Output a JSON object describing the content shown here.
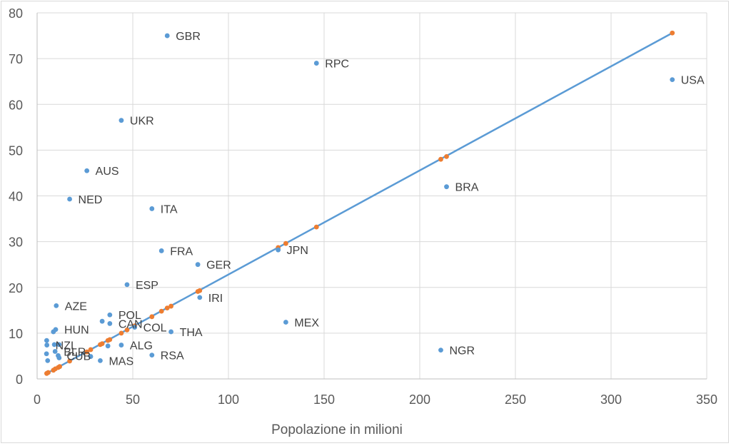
{
  "chart_data": {
    "type": "scatter",
    "xlabel": "Popolazione in milioni",
    "ylabel": "",
    "title": "",
    "xlim": [
      0,
      350
    ],
    "ylim": [
      0,
      80
    ],
    "xticks": [
      0,
      50,
      100,
      150,
      200,
      250,
      300,
      350
    ],
    "yticks": [
      0,
      10,
      20,
      30,
      40,
      50,
      60,
      70,
      80
    ],
    "grid": true,
    "colors": {
      "actual": "#5b9bd5",
      "fitted": "#ed7d31",
      "line": "#5b9bd5"
    },
    "series": [
      {
        "points": [
          {
            "x": 68,
            "y": 75,
            "label": "GBR"
          },
          {
            "x": 146,
            "y": 69,
            "label": "RPC"
          },
          {
            "x": 332,
            "y": 65.4,
            "label": "USA"
          },
          {
            "x": 44,
            "y": 56.5,
            "label": "UKR"
          },
          {
            "x": 26,
            "y": 45.5,
            "label": "AUS"
          },
          {
            "x": 214,
            "y": 42,
            "label": "BRA"
          },
          {
            "x": 17,
            "y": 39.3,
            "label": "NED"
          },
          {
            "x": 60,
            "y": 37.2,
            "label": "ITA"
          },
          {
            "x": 65,
            "y": 28,
            "label": "FRA"
          },
          {
            "x": 126,
            "y": 28.2,
            "label": "JPN"
          },
          {
            "x": 84,
            "y": 25,
            "label": "GER"
          },
          {
            "x": 47,
            "y": 20.6,
            "label": "ESP"
          },
          {
            "x": 85,
            "y": 17.8,
            "label": "IRI"
          },
          {
            "x": 10,
            "y": 16,
            "label": "AZE"
          },
          {
            "x": 38,
            "y": 14,
            "label": "POL"
          },
          {
            "x": 34,
            "y": 12.6,
            "label": ""
          },
          {
            "x": 38,
            "y": 12.1,
            "label": "CAN"
          },
          {
            "x": 130,
            "y": 12.4,
            "label": "MEX"
          },
          {
            "x": 51,
            "y": 11.3,
            "label": "COL"
          },
          {
            "x": 70,
            "y": 10.3,
            "label": "THA"
          },
          {
            "x": 9.7,
            "y": 10.8,
            "label": "HUN"
          },
          {
            "x": 8.5,
            "y": 10.3,
            "label": ""
          },
          {
            "x": 5,
            "y": 8.4,
            "label": ""
          },
          {
            "x": 5.1,
            "y": 7.4,
            "label": "NZL"
          },
          {
            "x": 9,
            "y": 7.5,
            "label": ""
          },
          {
            "x": 11.5,
            "y": 7.5,
            "label": ""
          },
          {
            "x": 44,
            "y": 7.4,
            "label": "ALG"
          },
          {
            "x": 37,
            "y": 7.2,
            "label": ""
          },
          {
            "x": 9.4,
            "y": 6,
            "label": "BLR"
          },
          {
            "x": 4.9,
            "y": 5.5,
            "label": ""
          },
          {
            "x": 11,
            "y": 5.1,
            "label": "CUB"
          },
          {
            "x": 60,
            "y": 5.2,
            "label": "RSA"
          },
          {
            "x": 211,
            "y": 6.3,
            "label": "NGR"
          },
          {
            "x": 28,
            "y": 4.9,
            "label": ""
          },
          {
            "x": 33,
            "y": 4,
            "label": "MAS"
          },
          {
            "x": 5.5,
            "y": 4,
            "label": ""
          },
          {
            "x": 11.5,
            "y": 4.6,
            "label": ""
          }
        ]
      },
      {
        "points": [
          {
            "x": 5,
            "y": 1.2
          },
          {
            "x": 5.8,
            "y": 1.4
          },
          {
            "x": 8.5,
            "y": 1.9
          },
          {
            "x": 9.5,
            "y": 2.2
          },
          {
            "x": 11,
            "y": 2.5
          },
          {
            "x": 11.8,
            "y": 2.7
          },
          {
            "x": 17,
            "y": 3.9
          },
          {
            "x": 26,
            "y": 5.9
          },
          {
            "x": 28,
            "y": 6.4
          },
          {
            "x": 33,
            "y": 7.5
          },
          {
            "x": 34,
            "y": 7.7
          },
          {
            "x": 37,
            "y": 8.4
          },
          {
            "x": 38,
            "y": 8.6
          },
          {
            "x": 44,
            "y": 10
          },
          {
            "x": 47,
            "y": 10.7
          },
          {
            "x": 51,
            "y": 11.6
          },
          {
            "x": 60,
            "y": 13.6
          },
          {
            "x": 65,
            "y": 14.8
          },
          {
            "x": 68,
            "y": 15.5
          },
          {
            "x": 70,
            "y": 15.9
          },
          {
            "x": 84,
            "y": 19.1
          },
          {
            "x": 85,
            "y": 19.3
          },
          {
            "x": 126,
            "y": 28.7
          },
          {
            "x": 130,
            "y": 29.6
          },
          {
            "x": 146,
            "y": 33.2
          },
          {
            "x": 211,
            "y": 48
          },
          {
            "x": 214,
            "y": 48.6
          },
          {
            "x": 332,
            "y": 75.6
          }
        ]
      }
    ],
    "trendline": {
      "from": [
        5,
        1.2
      ],
      "to": [
        332,
        75.6
      ]
    }
  }
}
